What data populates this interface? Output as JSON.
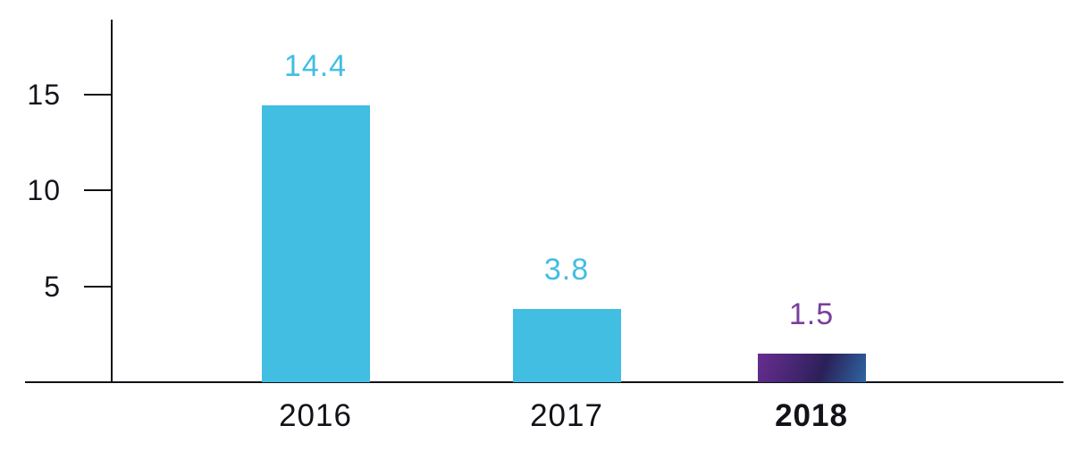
{
  "chart_data": {
    "type": "bar",
    "title": "",
    "xlabel": "",
    "ylabel": "",
    "categories": [
      "2016",
      "2017",
      "2018"
    ],
    "values": [
      14.4,
      3.8,
      1.5
    ],
    "yticks": [
      15,
      10,
      5
    ],
    "ylim": [
      0,
      18.8
    ],
    "grid": false,
    "legend_position": "none",
    "bars": [
      {
        "category": "2016",
        "value": 14.4,
        "value_label": "14.4",
        "value_label_color": "#41BEE2",
        "fill": "#41BEE2",
        "category_bold": false
      },
      {
        "category": "2017",
        "value": 3.8,
        "value_label": "3.8",
        "value_label_color": "#41BEE2",
        "fill": "#41BEE2",
        "category_bold": false
      },
      {
        "category": "2018",
        "value": 1.5,
        "value_label": "1.5",
        "value_label_color": "#7A3F9C",
        "fill": "linear-gradient(110deg, #662E8F 0%, #4B2777 30%, #2B2058 60%, #2E66A3 100%)",
        "category_bold": true
      }
    ],
    "colors": {
      "bar_cyan": "#41BEE2",
      "label_purple": "#7A3F9C",
      "axis": "#111118",
      "gradient_start": "#662E8F",
      "gradient_mid": "#2B2058",
      "gradient_end": "#2E66A3"
    }
  }
}
